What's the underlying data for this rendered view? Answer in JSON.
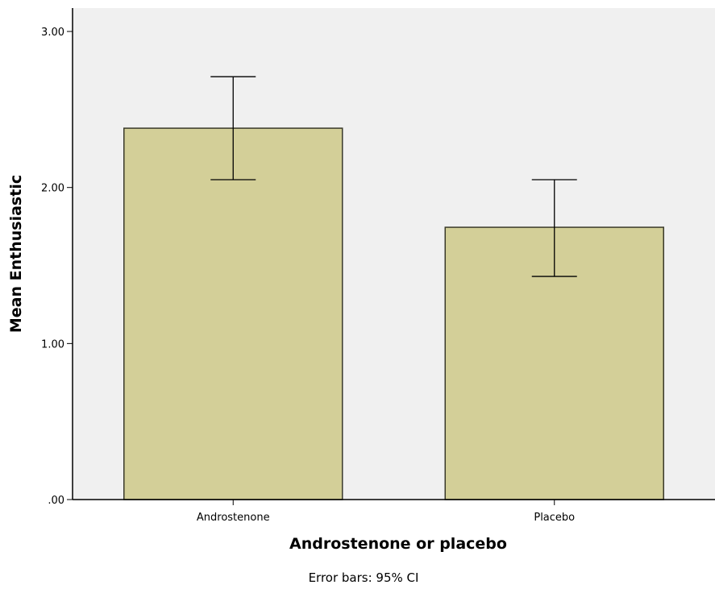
{
  "chart_data": {
    "type": "bar",
    "categories": [
      "Androstenone",
      "Placebo"
    ],
    "values": [
      2.38,
      1.745
    ],
    "error_bars": [
      {
        "lower": 2.05,
        "upper": 2.71
      },
      {
        "lower": 1.43,
        "upper": 2.05
      }
    ],
    "xlabel": "Androstenone or placebo",
    "ylabel": "Mean Enthusiastic",
    "ylim": [
      0,
      3.15
    ],
    "yticks": [
      0,
      1,
      2,
      3
    ],
    "ytick_labels": [
      ".00",
      "1.00",
      "2.00",
      "3.00"
    ],
    "footnote": "Error bars: 95% CI",
    "grid": false,
    "colors": {
      "bar_fill": "#d3cf98",
      "bar_stroke": "#3a3a2a",
      "plot_background": "#f0f0f0",
      "error_bar": "#000000"
    }
  }
}
